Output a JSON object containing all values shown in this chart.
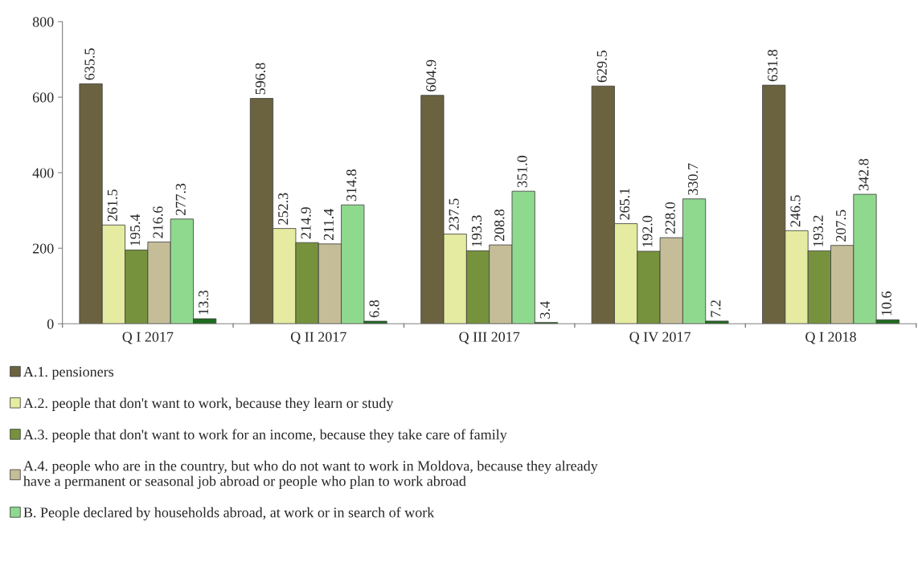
{
  "chart_data": {
    "type": "bar",
    "categories": [
      "Q I 2017",
      "Q II 2017",
      "Q III 2017",
      "Q IV 2017",
      "Q I 2018"
    ],
    "series": [
      {
        "name": "A.1. pensioners",
        "color": "#6b6340",
        "values": [
          635.5,
          596.8,
          604.9,
          629.5,
          631.8
        ],
        "value_labels": [
          "635.5",
          "596.8",
          "604.9",
          "629.5",
          "631.8"
        ]
      },
      {
        "name": "A.2. people that don't want to work, because they learn or study",
        "color": "#e5eba0",
        "values": [
          261.5,
          252.3,
          237.5,
          265.1,
          246.5
        ],
        "value_labels": [
          "261.5",
          "252.3",
          "237.5",
          "265.1",
          "246.5"
        ]
      },
      {
        "name": "A.3. people that don't want to work for an income, because they take care of family",
        "color": "#76923c",
        "values": [
          195.4,
          214.9,
          193.3,
          192.0,
          193.2
        ],
        "value_labels": [
          "195.4",
          "214.9",
          "193.3",
          "192.0",
          "193.2"
        ]
      },
      {
        "name": "A.4. people who are in the country, but who do not want to work in Moldova, because they already\nhave a permanent or seasonal job abroad or people who plan to work abroad",
        "color": "#c4bd97",
        "values": [
          216.6,
          211.4,
          208.8,
          228.0,
          207.5
        ],
        "value_labels": [
          "216.6",
          "211.4",
          "208.8",
          "228.0",
          "207.5"
        ]
      },
      {
        "name": "B. People declared by households abroad, at work or in search of work",
        "color": "#8fd98f",
        "values": [
          277.3,
          314.8,
          351.0,
          330.7,
          342.8
        ],
        "value_labels": [
          "277.3",
          "314.8",
          "351.0",
          "330.7",
          "342.8"
        ]
      },
      {
        "color": "#1e6b1e",
        "values": [
          13.3,
          6.8,
          3.4,
          7.2,
          10.6
        ],
        "value_labels": [
          "13.3",
          "6.8",
          "3.4",
          "7.2",
          "10.6"
        ]
      }
    ],
    "ylim": [
      0,
      800
    ],
    "yticks": [
      0,
      200,
      400,
      600,
      800
    ],
    "grid": false,
    "legend": "bottom"
  }
}
